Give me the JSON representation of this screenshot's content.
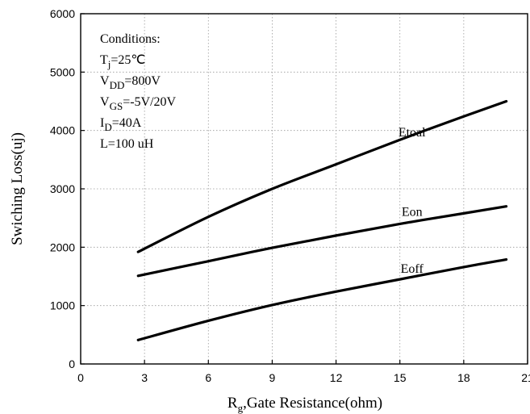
{
  "chart_data": {
    "type": "line",
    "xlabel_main": "R",
    "xlabel_sub": "g",
    "xlabel_rest": ",Gate Resistance(ohm)",
    "ylabel": "Swiching Loss(uj)",
    "xlim": [
      0,
      21
    ],
    "ylim": [
      0,
      6000
    ],
    "xticks": [
      "0",
      "3",
      "6",
      "9",
      "12",
      "15",
      "18",
      "21"
    ],
    "yticks": [
      "0",
      "1000",
      "2000",
      "3000",
      "4000",
      "5000",
      "6000"
    ],
    "grid": true,
    "conditions": {
      "title": "Conditions:",
      "lines": [
        {
          "main": "T",
          "sub": "j",
          "rest": "=25℃"
        },
        {
          "main": "V",
          "sub": "DD",
          "rest": "=800V"
        },
        {
          "main": "V",
          "sub": "GS",
          "rest": "=-5V/20V"
        },
        {
          "main": "I",
          "sub": "D",
          "rest": "=40A"
        },
        {
          "main": "L=100 uH",
          "sub": "",
          "rest": ""
        }
      ]
    },
    "series": [
      {
        "name": "Etoal",
        "x": [
          2.7,
          6,
          9,
          12,
          15,
          18,
          20
        ],
        "values": [
          1920,
          2520,
          3000,
          3420,
          3840,
          4240,
          4500
        ]
      },
      {
        "name": "Eon",
        "x": [
          2.7,
          6,
          9,
          12,
          15,
          18,
          20
        ],
        "values": [
          1510,
          1760,
          1990,
          2200,
          2400,
          2580,
          2700
        ]
      },
      {
        "name": "Eoff",
        "x": [
          2.7,
          6,
          9,
          12,
          15,
          18,
          20
        ],
        "values": [
          410,
          740,
          1010,
          1240,
          1450,
          1660,
          1790
        ]
      }
    ]
  }
}
